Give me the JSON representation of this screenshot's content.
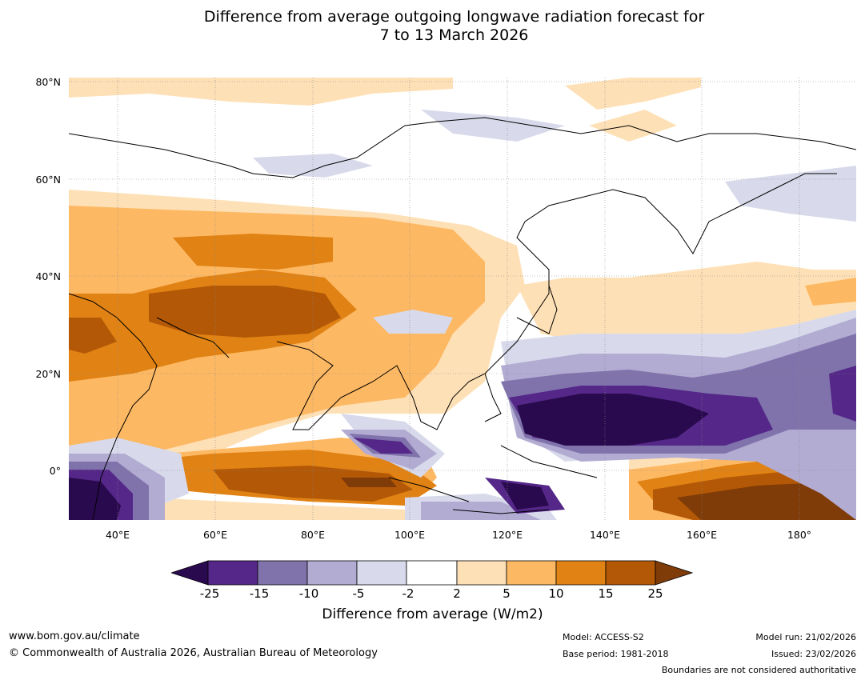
{
  "title": {
    "line1": "Difference from average outgoing longwave radiation forecast for",
    "line2": "7 to 13 March 2026"
  },
  "map": {
    "lat_labels": [
      "80°N",
      "60°N",
      "40°N",
      "20°N",
      "0°"
    ],
    "lon_labels": [
      "40°E",
      "60°E",
      "80°E",
      "100°E",
      "120°E",
      "140°E",
      "160°E",
      "180°"
    ]
  },
  "colorbar": {
    "ticks": [
      "-25",
      "-15",
      "-10",
      "-5",
      "-2",
      "2",
      "5",
      "10",
      "15",
      "25"
    ],
    "label": "Difference from average (W/m2)",
    "colors": {
      "below_-25": "#2a0a4e",
      "-25_-15": "#542788",
      "-15_-10": "#8073ac",
      "-10_-5": "#b2abd2",
      "-5_-2": "#d8daeb",
      "-2_2": "#ffffff",
      "2_5": "#fee0b6",
      "5_10": "#fdb863",
      "10_15": "#e08214",
      "15_25": "#b35806",
      "above_25": "#7f3b08"
    }
  },
  "footer": {
    "website": "www.bom.gov.au/climate",
    "copyright": "© Commonwealth of Australia 2026, Australian Bureau of Meteorology",
    "model": "Model: ACCESS-S2",
    "base_period": "Base period: 1981-2018",
    "model_run": "Model run: 21/02/2026",
    "issued": "Issued: 23/02/2026",
    "disclaimer": "Boundaries are not considered authoritative"
  }
}
